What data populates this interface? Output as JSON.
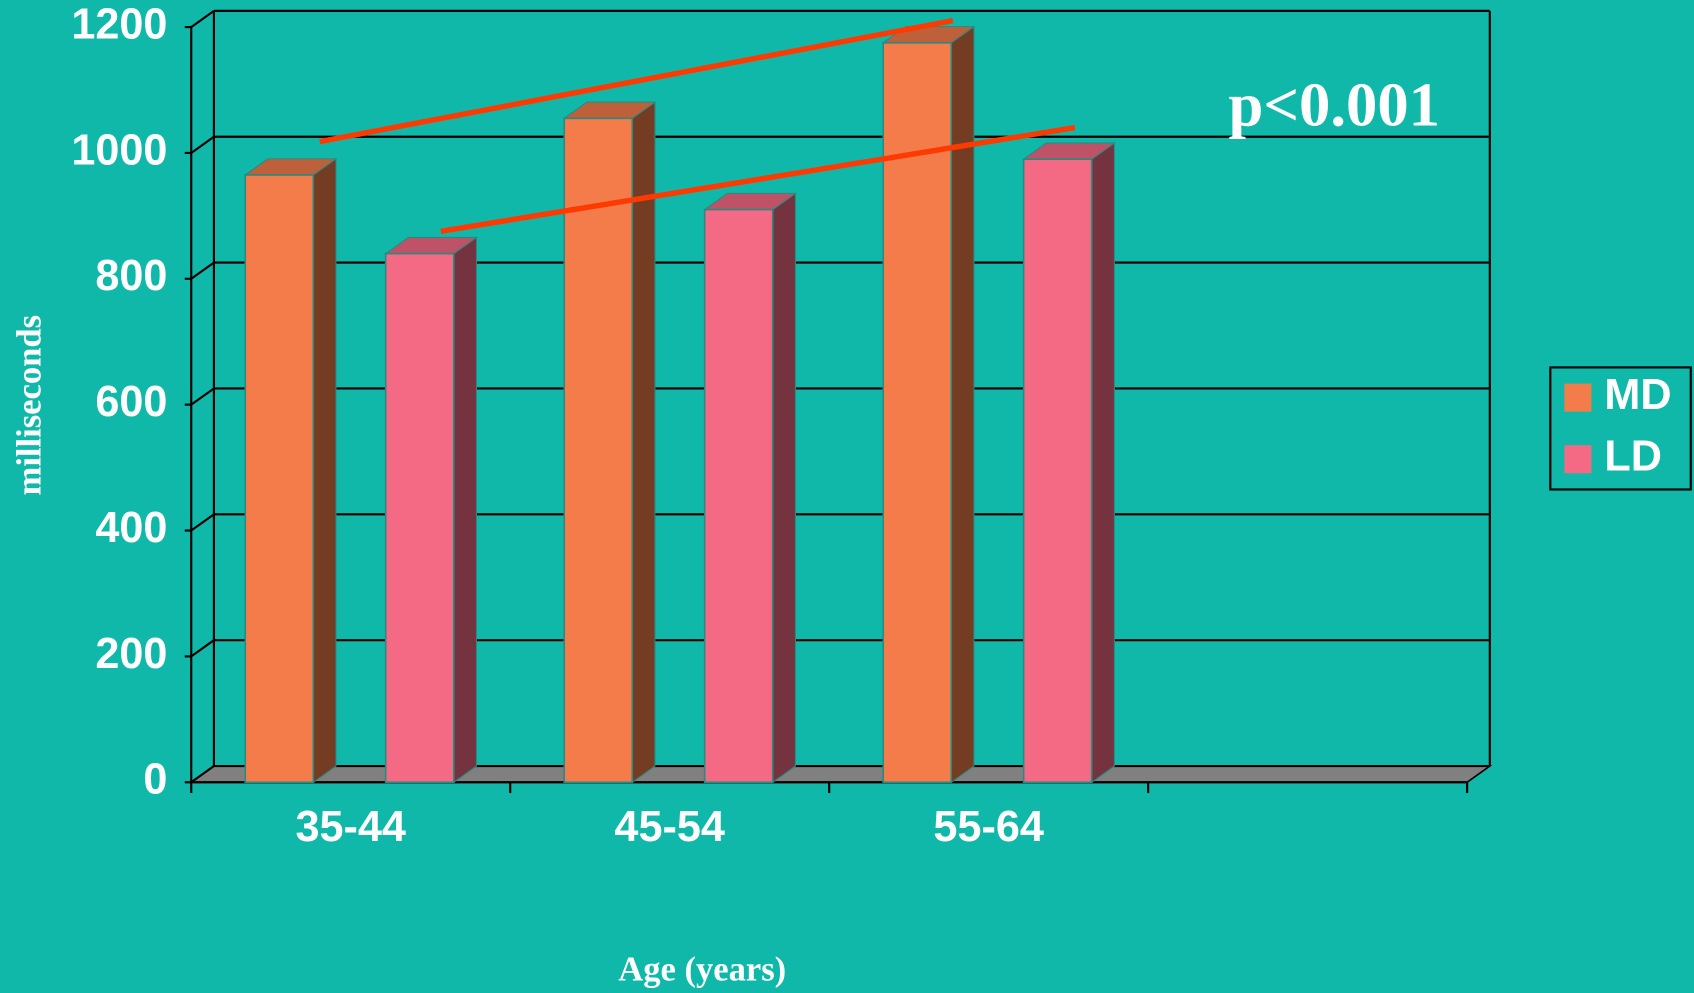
{
  "chart_data": {
    "type": "bar3d",
    "y_label": "milliseconds",
    "x_label": "Age (years)",
    "annotation": "p<0.001",
    "categories": [
      "35-44",
      "45-54",
      "55-64",
      null
    ],
    "series": [
      {
        "name": "MD",
        "color": "#f47c4a",
        "values": [
          965,
          1055,
          1175,
          null
        ]
      },
      {
        "name": "LD",
        "color": "#f46a85",
        "values": [
          840,
          910,
          990,
          null
        ]
      }
    ],
    "ylim": [
      0,
      1200
    ],
    "yticks": [
      0,
      200,
      400,
      600,
      800,
      1000,
      1200
    ],
    "grid": true,
    "legend": "right"
  }
}
